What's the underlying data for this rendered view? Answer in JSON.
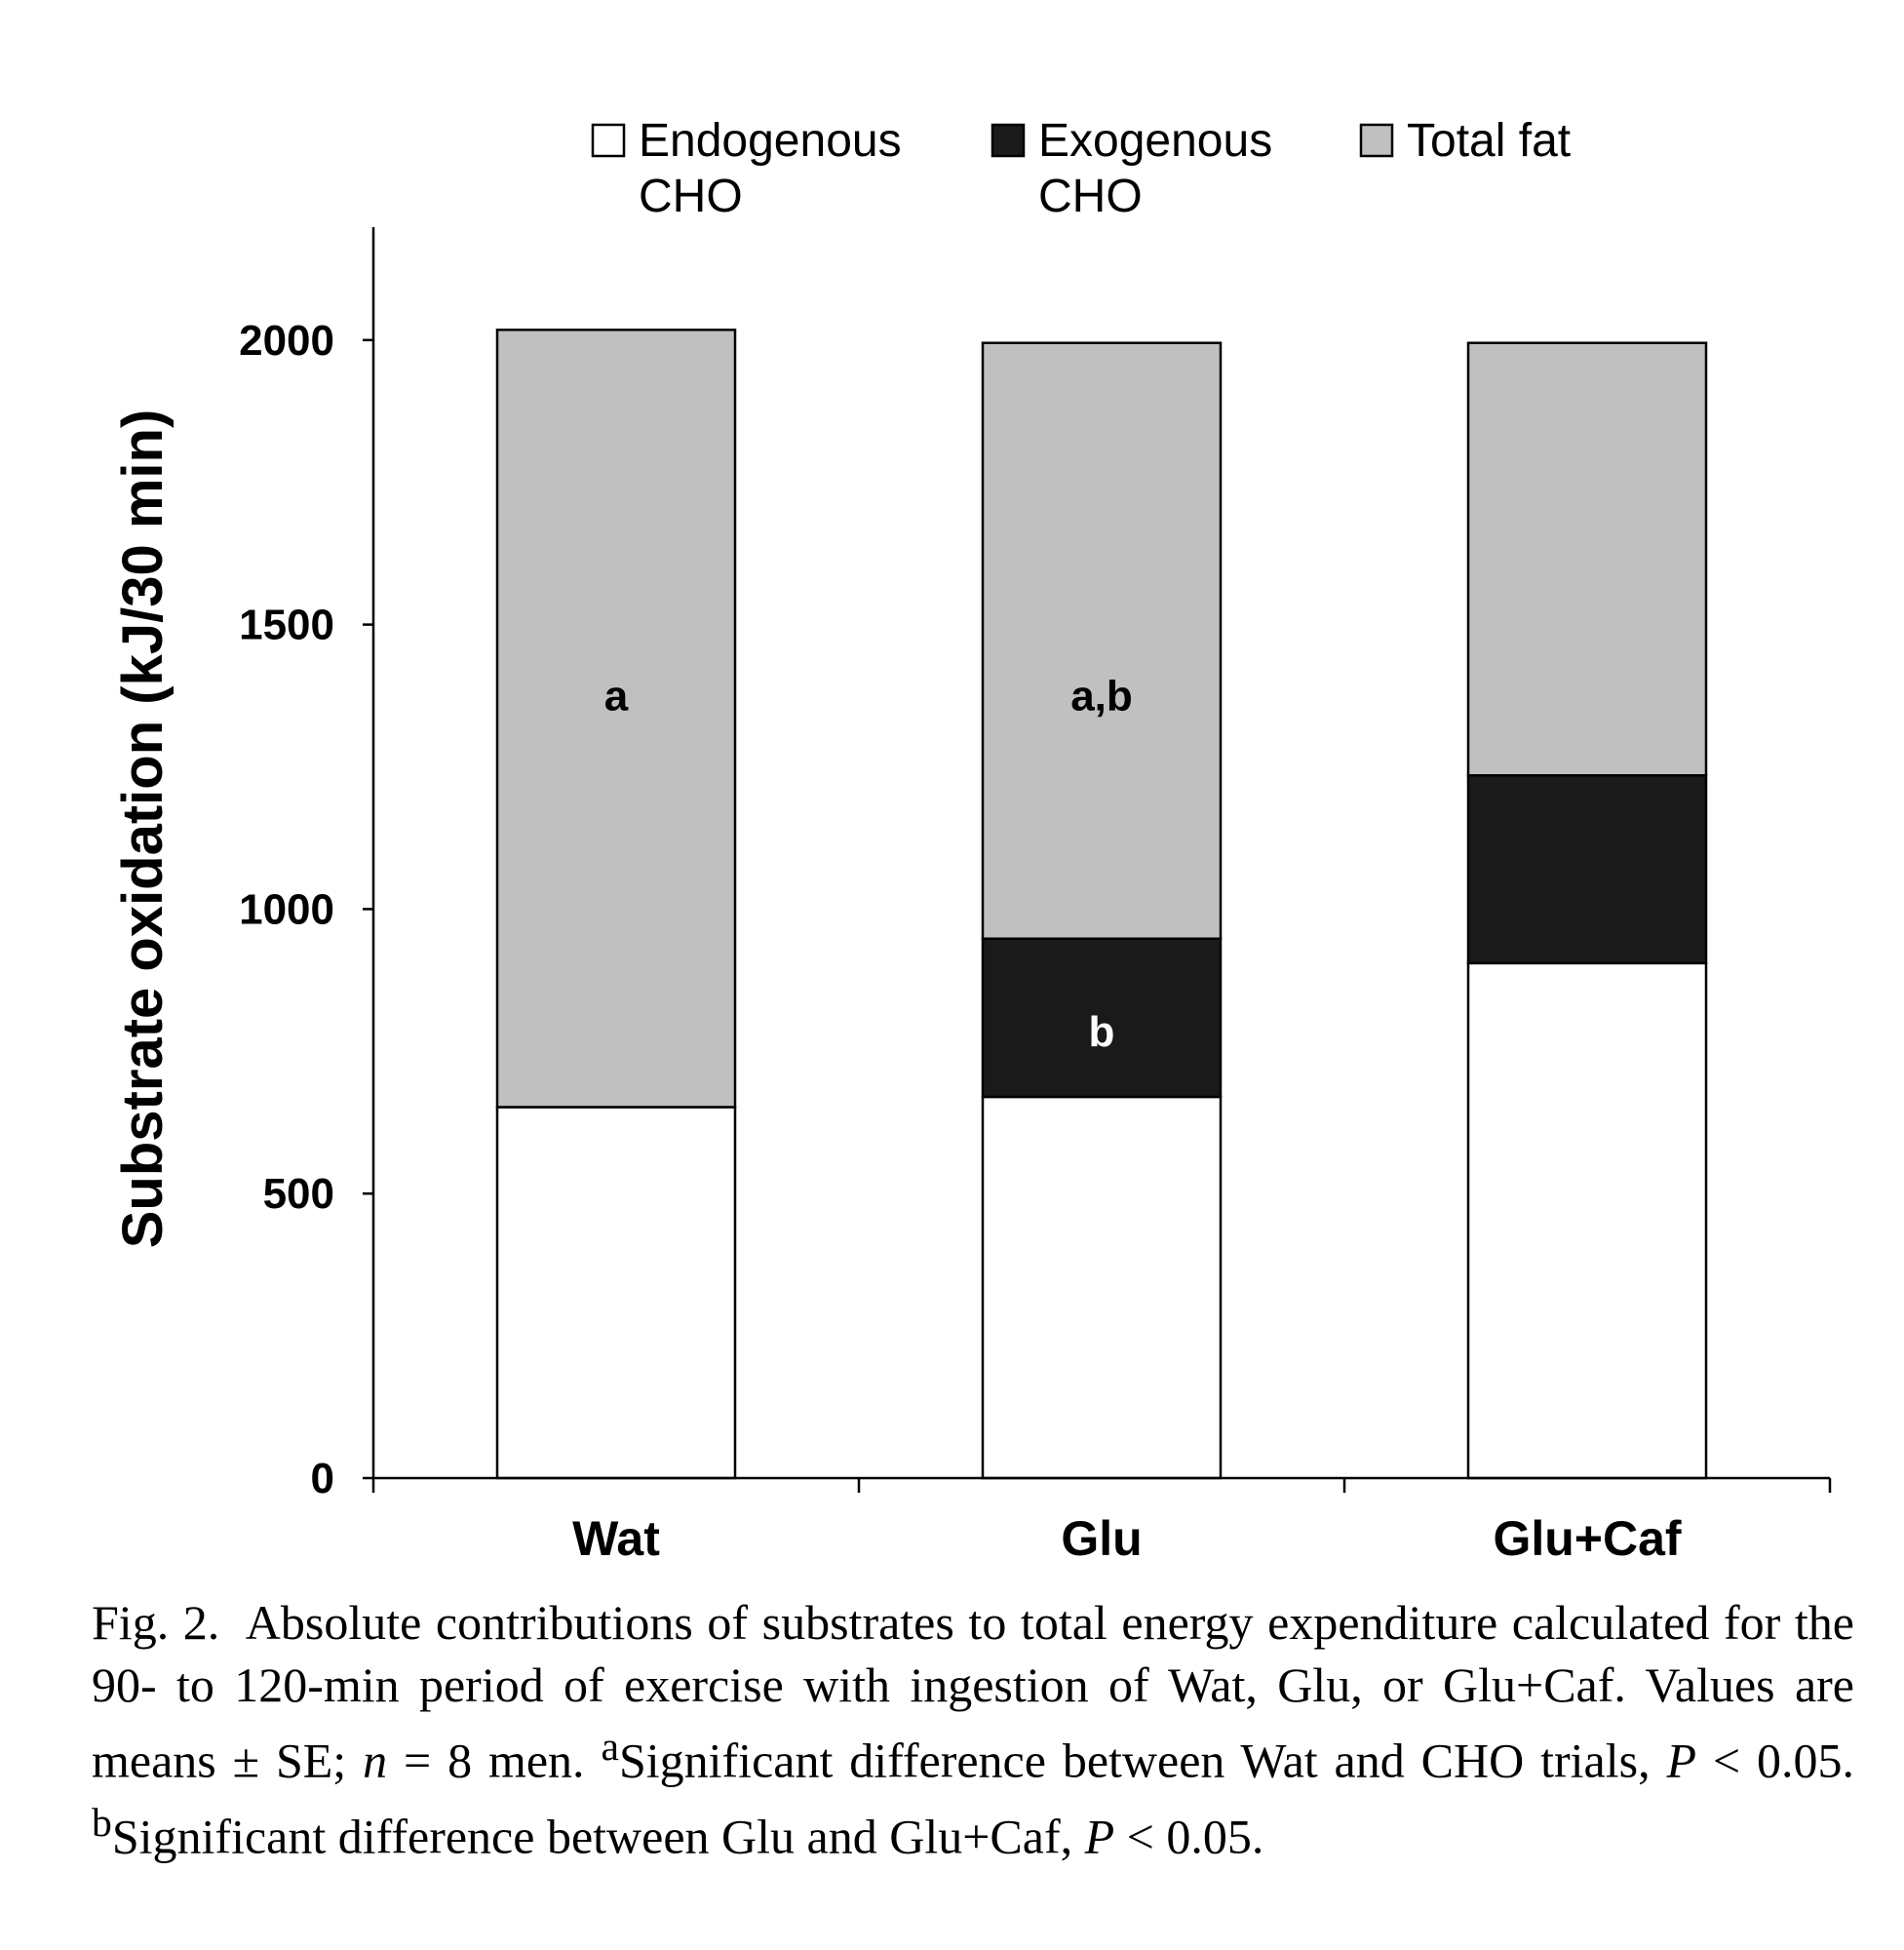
{
  "chart_data": {
    "type": "bar",
    "stacked": true,
    "categories": [
      "Wat",
      "Glu",
      "Glu+Caf"
    ],
    "series": [
      {
        "name": "Endogenous CHO",
        "legend_lines": [
          "Endogenous",
          "CHO"
        ],
        "color": "#ffffff",
        "values": [
          652,
          670,
          905
        ]
      },
      {
        "name": "Exogenous CHO",
        "legend_lines": [
          "Exogenous",
          "CHO"
        ],
        "color": "#1a1a1a",
        "values": [
          0,
          278,
          330
        ]
      },
      {
        "name": "Total fat",
        "legend_lines": [
          "Total fat"
        ],
        "color": "#c0c0c0",
        "values": [
          1366,
          1047,
          760
        ]
      }
    ],
    "annotations": [
      {
        "category": "Wat",
        "series": "Total fat",
        "text": "a",
        "at_value": 1375
      },
      {
        "category": "Glu",
        "series": "Total fat",
        "text": "a,b",
        "at_value": 1375
      },
      {
        "category": "Glu",
        "series": "Exogenous CHO",
        "text": "b",
        "at_value": 785
      }
    ],
    "xlabel": "",
    "ylabel": "Substrate oxidation (kJ/30 min)",
    "ylim": [
      0,
      2200
    ],
    "yticks": [
      0,
      500,
      1000,
      1500,
      2000
    ],
    "grid": false,
    "legend_position": "top"
  },
  "caption": {
    "label": "Fig. 2.",
    "text1": "Absolute contributions of substrates to total energy expenditure calculated for the 90- to 120-min period of exercise with ingestion of Wat, Glu, or Glu+Caf. Values are means ± SE;",
    "n_symbol": "n",
    "text2": "= 8 men.",
    "note_a_mark": "a",
    "note_a_text": "Significant difference between Wat and CHO trials,",
    "p_symbol_a": "P",
    "p_value_a": "< 0.05.",
    "note_b_mark": "b",
    "note_b_text": "Significant difference between Glu and Glu+Caf,",
    "p_symbol_b": "P",
    "p_value_b": "< 0.05."
  }
}
